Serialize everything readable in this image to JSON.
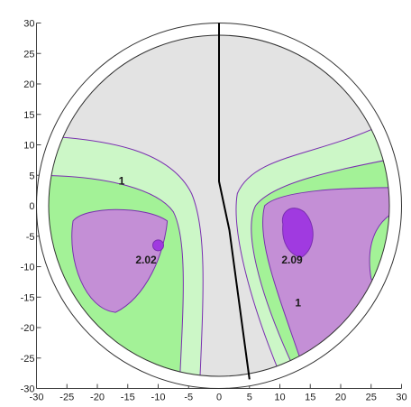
{
  "chart_data": {
    "type": "contour",
    "title": "",
    "xlabel": "",
    "ylabel": "",
    "xlim": [
      -30,
      30
    ],
    "ylim": [
      -30,
      30
    ],
    "x_ticks": [
      -30,
      -25,
      -20,
      -15,
      -10,
      -5,
      0,
      5,
      10,
      15,
      20,
      25,
      30
    ],
    "y_ticks": [
      -30,
      -25,
      -20,
      -15,
      -10,
      -5,
      0,
      5,
      10,
      15,
      20,
      25,
      30
    ],
    "x_tick_labels": [
      "-30",
      "-25",
      "-20",
      "-15",
      "-10",
      "-5",
      "0",
      "5",
      "10",
      "15",
      "20",
      "25",
      "30"
    ],
    "y_tick_labels": [
      "-30",
      "-25",
      "-20",
      "-15",
      "-10",
      "-5",
      "0",
      "5",
      "10",
      "15",
      "20",
      "25",
      "30"
    ],
    "outer_circle_radius": 30,
    "inner_circle_radius": 28,
    "grid": false,
    "colors": {
      "background_disc": "#e3e3e3",
      "band_light_green": "#ccf7c7",
      "band_green": "#a3f297",
      "band_purple": "#c48fd6",
      "peak_violet": "#a03ae0",
      "contour_line": "#7a2fb0",
      "center_line": "#000000"
    },
    "contour_levels": [
      "1"
    ],
    "peaks": [
      {
        "label": "2.02",
        "x": -10,
        "y": -6.5
      },
      {
        "label": "2.09",
        "x": 13,
        "y": -5
      }
    ],
    "annotations": [
      {
        "text": "1",
        "x": -16,
        "y": 3.5
      },
      {
        "text": "2.02",
        "x": -12,
        "y": -9.5
      },
      {
        "text": "1",
        "x": 13,
        "y": -16.5
      },
      {
        "text": "2.09",
        "x": 12,
        "y": -9.5
      }
    ],
    "center_line": [
      {
        "x": 0,
        "y": 30
      },
      {
        "x": 0,
        "y": 4
      },
      {
        "x": 1.7,
        "y": -4
      },
      {
        "x": 5,
        "y": -28.5
      }
    ]
  }
}
